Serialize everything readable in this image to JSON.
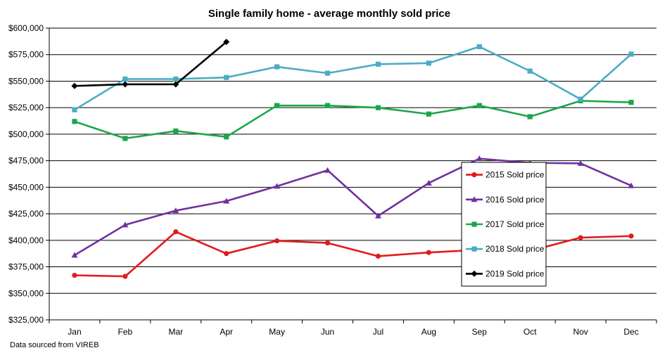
{
  "chart_data": {
    "type": "line",
    "title": "Single family home - average monthly sold price",
    "xlabel": "",
    "ylabel": "",
    "categories": [
      "Jan",
      "Feb",
      "Mar",
      "Apr",
      "May",
      "Jun",
      "Jul",
      "Aug",
      "Sep",
      "Oct",
      "Nov",
      "Dec"
    ],
    "ylim": [
      325000,
      600000
    ],
    "yticks": [
      325000,
      350000,
      375000,
      400000,
      425000,
      450000,
      475000,
      500000,
      525000,
      550000,
      575000,
      600000
    ],
    "ytick_labels": [
      "$325,000",
      "$350,000",
      "$375,000",
      "$400,000",
      "$425,000",
      "$450,000",
      "$475,000",
      "$500,000",
      "$525,000",
      "$550,000",
      "$575,000",
      "$600,000"
    ],
    "grid": true,
    "legend_position": "center-right",
    "series": [
      {
        "name": "2015 Sold price",
        "color": "#e31a1c",
        "marker": "circle",
        "values": [
          367000,
          366000,
          408000,
          387500,
          399500,
          397500,
          385000,
          388500,
          391000,
          390000,
          402500,
          404000
        ]
      },
      {
        "name": "2016 Sold price",
        "color": "#7030a0",
        "marker": "triangle",
        "values": [
          386000,
          414500,
          428000,
          437000,
          451000,
          466000,
          423000,
          454000,
          477000,
          473000,
          472500,
          451500
        ]
      },
      {
        "name": "2017 Sold price",
        "color": "#1aa74a",
        "marker": "square",
        "values": [
          512000,
          496000,
          503000,
          497500,
          527000,
          527000,
          525000,
          519000,
          527000,
          516500,
          531500,
          530000
        ]
      },
      {
        "name": "2018 Sold price",
        "color": "#4bacc6",
        "marker": "square",
        "values": [
          523000,
          552000,
          552000,
          553500,
          563500,
          557500,
          566000,
          567000,
          582500,
          559500,
          533000,
          575500
        ]
      },
      {
        "name": "2019 Sold price",
        "color": "#000000",
        "marker": "diamond",
        "values": [
          545500,
          547000,
          547000,
          587000,
          null,
          null,
          null,
          null,
          null,
          null,
          null,
          null
        ]
      }
    ],
    "source_note": "Data sourced from VIREB"
  }
}
